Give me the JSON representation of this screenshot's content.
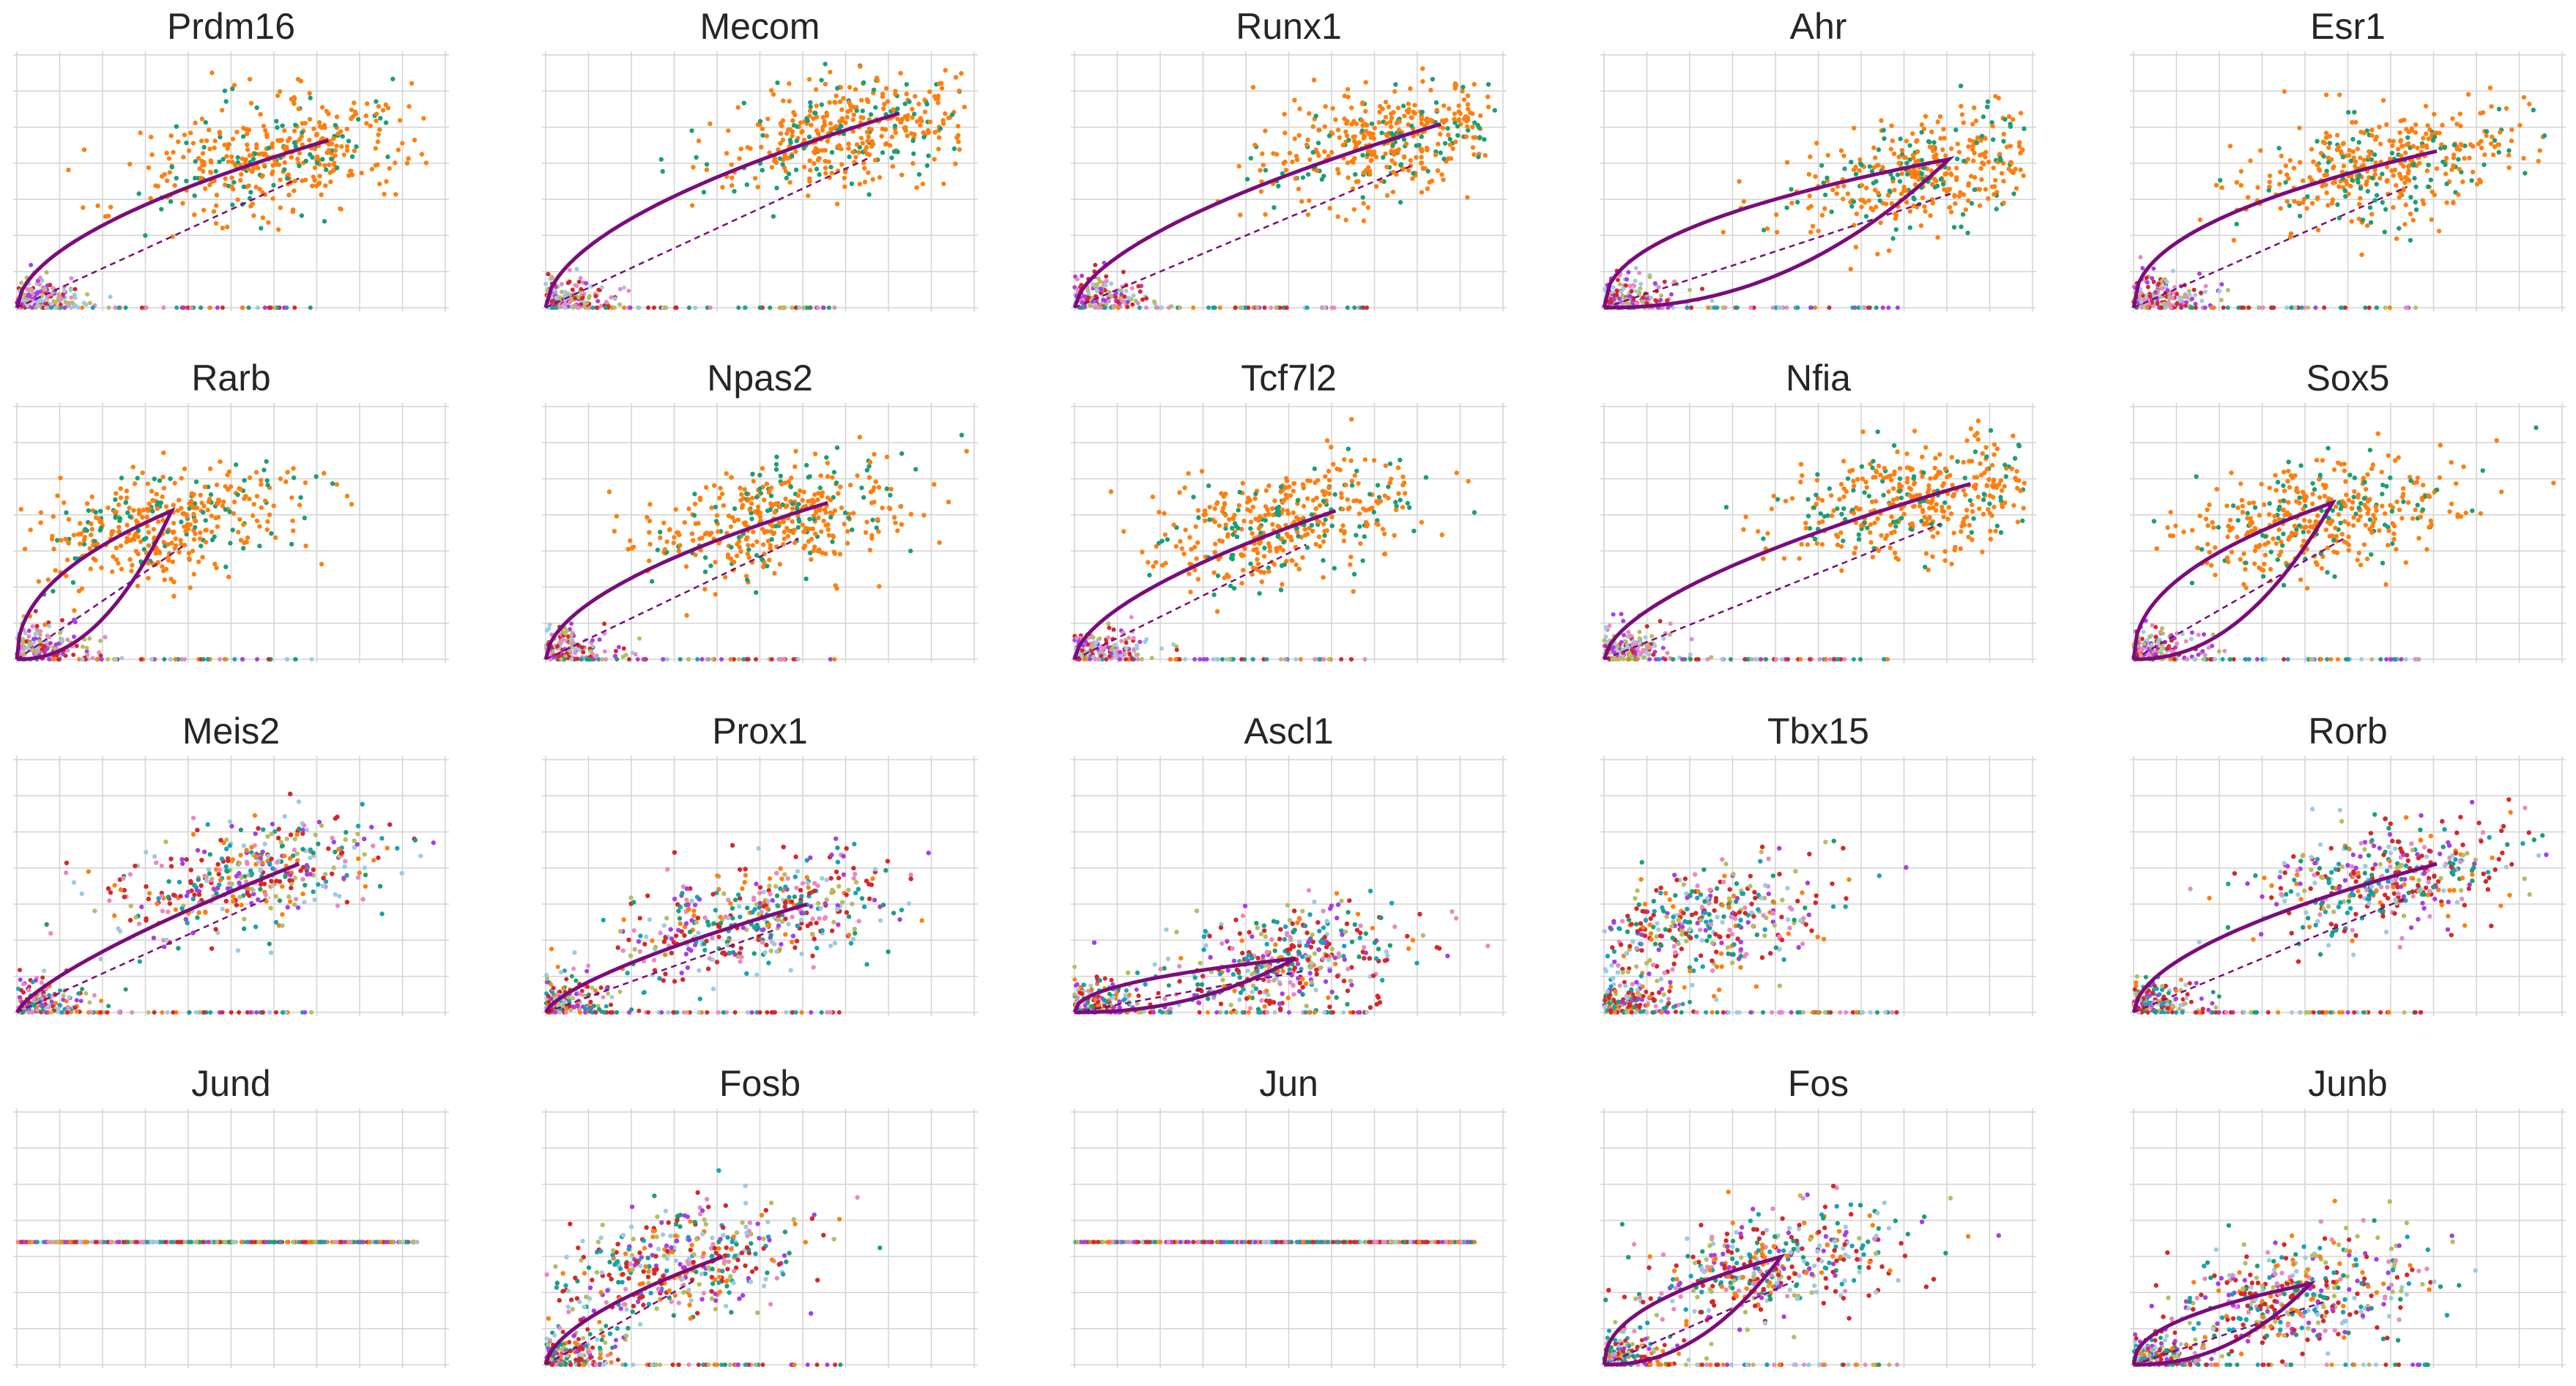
{
  "figure": {
    "colors": {
      "orange": "#ff7f0e",
      "green": "#1b9e77",
      "purple": "#a83ee8",
      "red": "#d62728",
      "pink": "#e78ac3",
      "olive": "#b5bd61",
      "lightblue": "#9ecae1",
      "teal": "#17a2b8",
      "curve": "#7b0c7b",
      "grid": "#d3d3d3"
    }
  },
  "chart_data": [
    {
      "type": "scatter",
      "title": "Prdm16",
      "pattern": "sat",
      "cluster": "orange",
      "grid": true,
      "gamma": 0.55,
      "cx": 0.62,
      "cy": 0.62
    },
    {
      "type": "scatter",
      "title": "Mecom",
      "pattern": "sat",
      "cluster": "orange",
      "grid": true,
      "gamma": 0.55,
      "cx": 0.72,
      "cy": 0.72
    },
    {
      "type": "scatter",
      "title": "Runx1",
      "pattern": "sat",
      "cluster": "orange",
      "grid": true,
      "gamma": 0.6,
      "cx": 0.75,
      "cy": 0.68
    },
    {
      "type": "scatter",
      "title": "Ahr",
      "pattern": "loop",
      "cluster": "orange",
      "grid": true,
      "gamma": 0.9,
      "cx": 0.78,
      "cy": 0.55
    },
    {
      "type": "scatter",
      "title": "Esr1",
      "pattern": "sat",
      "cluster": "orange",
      "grid": true,
      "gamma": 0.45,
      "cx": 0.6,
      "cy": 0.58
    },
    {
      "type": "scatter",
      "title": "Rarb",
      "pattern": "loop",
      "cluster": "orange",
      "grid": true,
      "gamma": 1.2,
      "cx": 0.35,
      "cy": 0.55
    },
    {
      "type": "scatter",
      "title": "Npas2",
      "pattern": "sat",
      "cluster": "orange",
      "grid": true,
      "gamma": 0.55,
      "cx": 0.55,
      "cy": 0.58
    },
    {
      "type": "scatter",
      "title": "Tcf7l2",
      "pattern": "sat",
      "cluster": "orange",
      "grid": true,
      "gamma": 0.6,
      "cx": 0.5,
      "cy": 0.55
    },
    {
      "type": "scatter",
      "title": "Nfia",
      "pattern": "sat",
      "cluster": "orange",
      "grid": true,
      "gamma": 0.6,
      "cx": 0.75,
      "cy": 0.65
    },
    {
      "type": "scatter",
      "title": "Sox5",
      "pattern": "loop",
      "cluster": "orange",
      "grid": true,
      "gamma": 1.4,
      "cx": 0.45,
      "cy": 0.58
    },
    {
      "type": "scatter",
      "title": "Meis2",
      "pattern": "sat",
      "cluster": "mixed",
      "grid": true,
      "gamma": 0.75,
      "cx": 0.55,
      "cy": 0.55
    },
    {
      "type": "scatter",
      "title": "Prox1",
      "pattern": "sat",
      "cluster": "mixed",
      "grid": true,
      "gamma": 0.7,
      "cx": 0.5,
      "cy": 0.4
    },
    {
      "type": "scatter",
      "title": "Ascl1",
      "pattern": "loop",
      "cluster": "mixed",
      "grid": true,
      "gamma": 1.0,
      "cx": 0.5,
      "cy": 0.2
    },
    {
      "type": "scatter",
      "title": "Tbx15",
      "pattern": "none",
      "cluster": "mixed",
      "grid": true,
      "gamma": 1.0,
      "cx": 0.2,
      "cy": 0.35
    },
    {
      "type": "scatter",
      "title": "Rorb",
      "pattern": "sat",
      "cluster": "mixed",
      "grid": true,
      "gamma": 0.55,
      "cx": 0.6,
      "cy": 0.55
    },
    {
      "type": "scatter",
      "title": "Jund",
      "pattern": "flat",
      "cluster": "mixed",
      "grid": true,
      "gamma": 1.0,
      "cx": 0.5,
      "cy": 0.5
    },
    {
      "type": "scatter",
      "title": "Fosb",
      "pattern": "sat",
      "cluster": "mixed",
      "grid": true,
      "gamma": 0.6,
      "cx": 0.3,
      "cy": 0.4
    },
    {
      "type": "scatter",
      "title": "Jun",
      "pattern": "flat",
      "cluster": "mixed",
      "grid": true,
      "gamma": 1.0,
      "cx": 0.5,
      "cy": 0.5
    },
    {
      "type": "scatter",
      "title": "Fos",
      "pattern": "loop",
      "cluster": "mixed",
      "grid": true,
      "gamma": 0.8,
      "cx": 0.4,
      "cy": 0.4
    },
    {
      "type": "scatter",
      "title": "Junb",
      "pattern": "loop",
      "cluster": "mixed",
      "grid": true,
      "gamma": 1.0,
      "cx": 0.4,
      "cy": 0.3
    }
  ]
}
